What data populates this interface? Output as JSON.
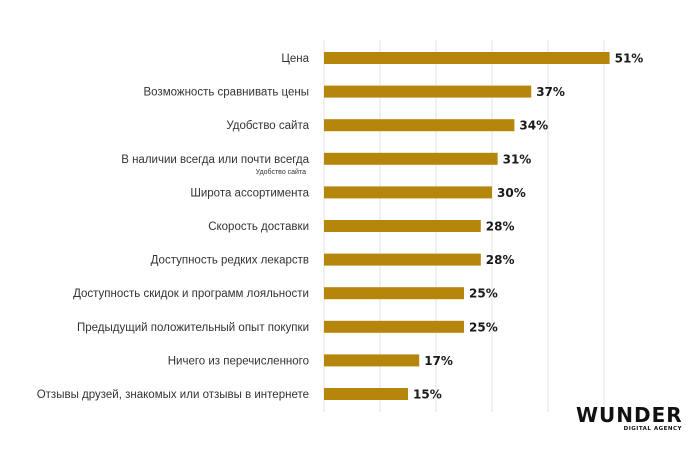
{
  "chart_data": {
    "type": "bar",
    "orientation": "horizontal",
    "categories": [
      "Цена",
      "Возможность сравнивать цены",
      "Удобство сайта",
      "В наличии всегда или почти всегда",
      "Широта ассортимента",
      "Скорость доставки",
      "Доступность редких лекарств",
      "Доступность скидок и программ лояльности",
      "Предыдущий положительный опыт покупки",
      "Ничего из перечисленного",
      "Отзывы друзей, знакомых или отзывы в интернете"
    ],
    "sublabels": [
      "",
      "",
      "",
      "Удобство сайта",
      "",
      "",
      "",
      "",
      "",
      "",
      ""
    ],
    "values": [
      51,
      37,
      34,
      31,
      30,
      28,
      28,
      25,
      25,
      17,
      15
    ],
    "value_labels": [
      "51%",
      "37%",
      "34%",
      "31%",
      "30%",
      "28%",
      "28%",
      "25%",
      "25%",
      "17%",
      "15%"
    ],
    "xlim": [
      0,
      55
    ],
    "grid": "vertical",
    "title": "",
    "xlabel": "",
    "ylabel": "",
    "colors": {
      "bar": "#b5860b",
      "grid": "#e2e2e2",
      "text": "#333333",
      "value_text": "#1a1a1a"
    }
  },
  "logo": {
    "main": "WUNDER",
    "sub": "DIGITAL AGENCY"
  }
}
